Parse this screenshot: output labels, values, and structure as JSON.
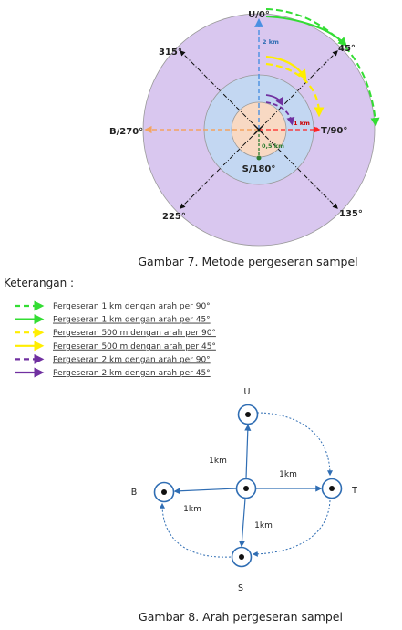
{
  "figure7": {
    "caption": "Gambar 7. Metode pergeseran sampel",
    "directions": {
      "north": "U/0°",
      "ne": "45°",
      "east": "T/90°",
      "se": "135°",
      "south": "S/180°",
      "sw": "225°",
      "west": "B/270°",
      "nw": "315°"
    },
    "distances": {
      "d2km": "2 km",
      "d1km": "1 km",
      "d05km": "0,5 km"
    }
  },
  "legend": {
    "title": "Keterangan :",
    "items": [
      {
        "label": "Pergeseran 1 km dengan arah per 90°",
        "color": "#33dd33",
        "style": "dashed"
      },
      {
        "label": "Pergeseran 1 km dengan arah per 45°",
        "color": "#33dd33",
        "style": "solid"
      },
      {
        "label": "Pergeseran 500 m dengan arah per 90°",
        "color": "#ffee00",
        "style": "dashed"
      },
      {
        "label": "Pergeseran 500 m dengan arah per 45°",
        "color": "#ffee00",
        "style": "solid"
      },
      {
        "label": "Pergeseran 2 km dengan arah per 90°",
        "color": "#7030a0",
        "style": "dashed"
      },
      {
        "label": "Pergeseran 2 km dengan arah per 45°",
        "color": "#7030a0",
        "style": "solid"
      }
    ]
  },
  "figure8": {
    "caption": "Gambar 8. Arah pergeseran sampel",
    "labels": {
      "north": "U",
      "east": "T",
      "south": "S",
      "west": "B"
    },
    "distance": "1km"
  },
  "colors": {
    "outer_ring": "#d9c7ef",
    "middle_ring": "#c3d7f2",
    "inner_circle": "#f8d9c3",
    "north_axis": "#4a90e2",
    "east_axis": "#ff2222",
    "west_axis": "#f4a460",
    "south_axis": "#2e7d32",
    "node_stroke": "#2f6db3"
  }
}
